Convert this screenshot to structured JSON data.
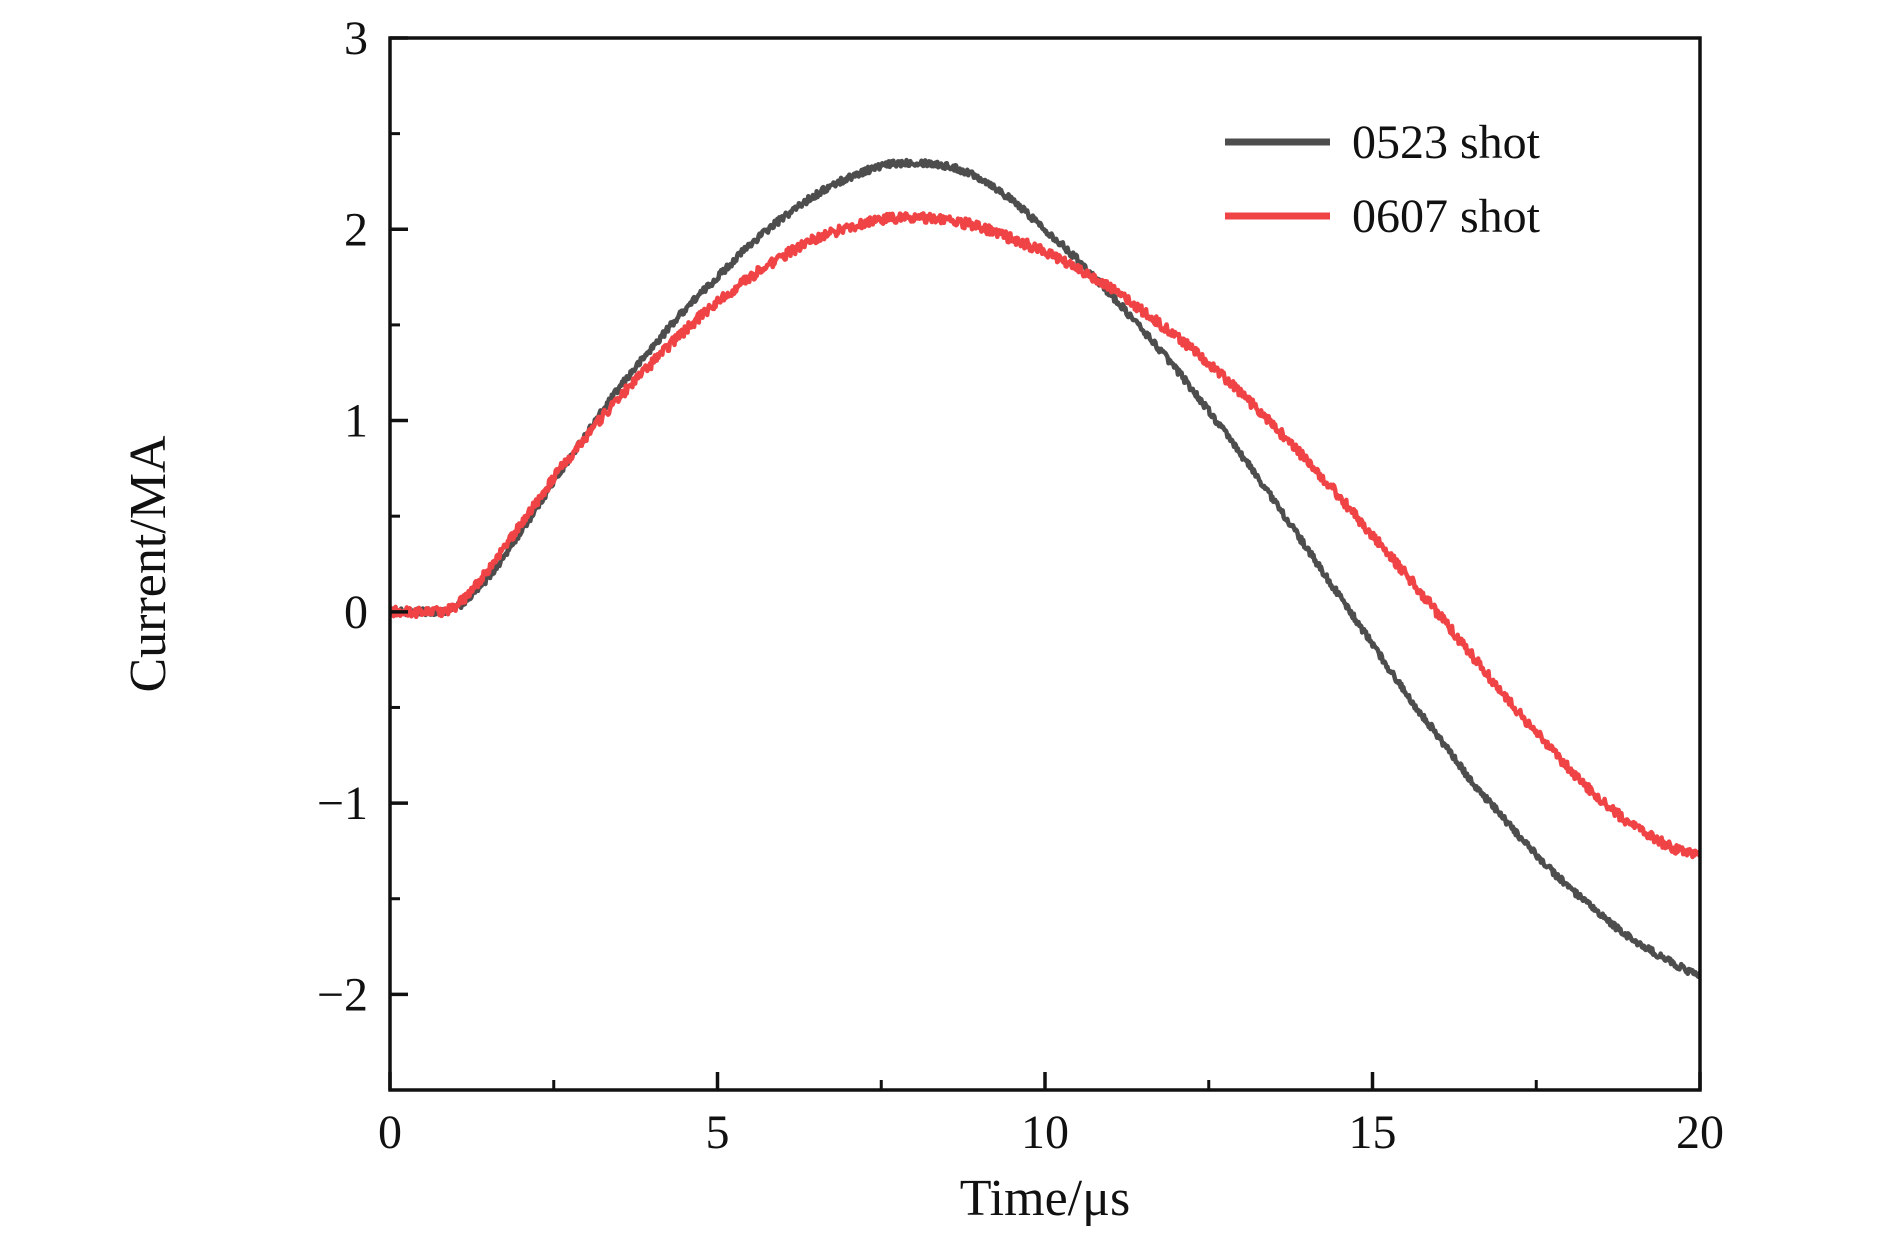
{
  "chart_data": {
    "type": "line",
    "title": "",
    "xlabel": "Time/μs",
    "ylabel": "Current/MA",
    "xlim": [
      0,
      20
    ],
    "ylim": [
      -2.5,
      3
    ],
    "grid": false,
    "legend_position": "top-right-inside",
    "xticks": {
      "values": [
        0,
        5,
        10,
        15,
        20
      ],
      "labels": [
        "0",
        "5",
        "10",
        "15",
        "20"
      ],
      "minor": [
        2.5,
        7.5,
        12.5,
        17.5
      ]
    },
    "yticks": {
      "values": [
        3,
        2,
        1,
        0,
        -1,
        -2
      ],
      "labels": [
        "3",
        "2",
        "1",
        "0",
        "−1",
        "−2"
      ],
      "minor": [
        2.5,
        1.5,
        0.5,
        -0.5,
        -1.5
      ]
    },
    "series": [
      {
        "name": "0523 shot",
        "color": "#4d4d4d",
        "noise": 0.018,
        "x": [
          0,
          0.5,
          1,
          1.5,
          2,
          2.5,
          3,
          3.5,
          4,
          4.5,
          5,
          5.5,
          6,
          6.5,
          7,
          7.5,
          8,
          8.5,
          9,
          9.5,
          10,
          10.5,
          11,
          11.5,
          12,
          12.5,
          13,
          13.5,
          14,
          14.5,
          15,
          15.5,
          16,
          16.5,
          17,
          17.5,
          18,
          18.5,
          19,
          19.5,
          20
        ],
        "y": [
          0,
          0,
          0.02,
          0.18,
          0.42,
          0.68,
          0.93,
          1.17,
          1.38,
          1.58,
          1.75,
          1.92,
          2.06,
          2.18,
          2.27,
          2.33,
          2.35,
          2.33,
          2.27,
          2.15,
          2.0,
          1.84,
          1.66,
          1.47,
          1.27,
          1.05,
          0.82,
          0.58,
          0.33,
          0.08,
          -0.17,
          -0.42,
          -0.65,
          -0.88,
          -1.08,
          -1.27,
          -1.44,
          -1.59,
          -1.72,
          -1.82,
          -1.9
        ]
      },
      {
        "name": "0607 shot",
        "color": "#f04345",
        "noise": 0.026,
        "x": [
          0,
          0.5,
          1,
          1.5,
          2,
          2.5,
          3,
          3.5,
          4,
          4.5,
          5,
          5.5,
          6,
          6.5,
          7,
          7.5,
          8,
          8.5,
          9,
          9.5,
          10,
          10.5,
          11,
          11.5,
          12,
          12.5,
          13,
          13.5,
          14,
          14.5,
          15,
          15.5,
          16,
          16.5,
          17,
          17.5,
          18,
          18.5,
          19,
          19.5,
          20
        ],
        "y": [
          0,
          0,
          0.03,
          0.22,
          0.46,
          0.7,
          0.92,
          1.12,
          1.3,
          1.47,
          1.62,
          1.75,
          1.86,
          1.95,
          2.01,
          2.05,
          2.06,
          2.05,
          2.01,
          1.95,
          1.88,
          1.79,
          1.69,
          1.57,
          1.44,
          1.3,
          1.14,
          0.97,
          0.79,
          0.6,
          0.4,
          0.2,
          -0.01,
          -0.22,
          -0.43,
          -0.63,
          -0.82,
          -0.99,
          -1.12,
          -1.22,
          -1.28
        ]
      }
    ]
  }
}
